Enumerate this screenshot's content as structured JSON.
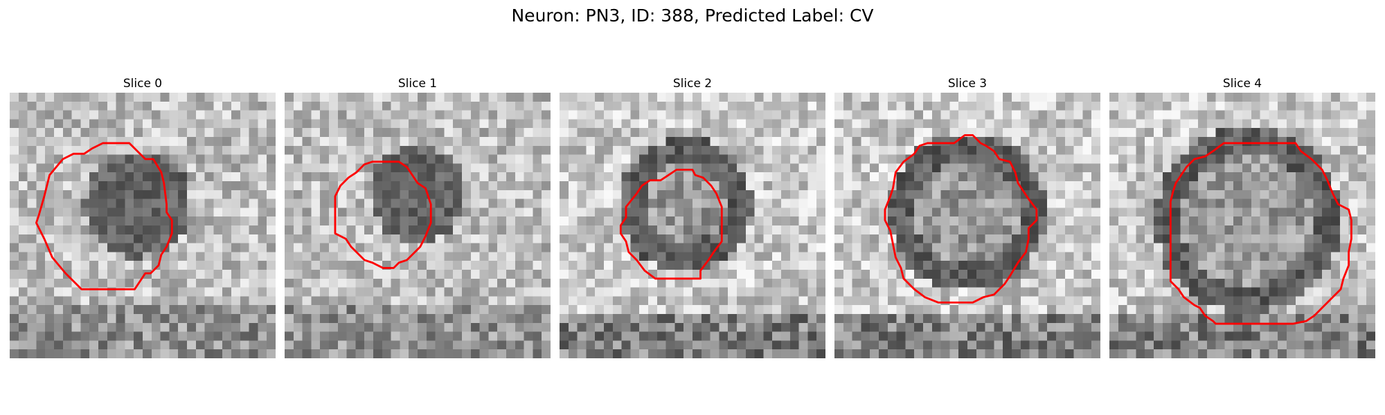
{
  "figure": {
    "title": "Neuron: PN3, ID: 388, Predicted Label: CV",
    "contour_color": "#ff0000"
  },
  "slices": [
    {
      "title": "Slice 0",
      "type": "ring",
      "ring_cx": 0.48,
      "ring_cy": 0.42,
      "ring_r": 0.2,
      "darken": true,
      "contour": [
        [
          0.35,
          0.19
        ],
        [
          0.45,
          0.19
        ],
        [
          0.48,
          0.22
        ],
        [
          0.51,
          0.25
        ],
        [
          0.54,
          0.25
        ],
        [
          0.57,
          0.3
        ],
        [
          0.58,
          0.34
        ],
        [
          0.59,
          0.42
        ],
        [
          0.59,
          0.45
        ],
        [
          0.61,
          0.48
        ],
        [
          0.61,
          0.5
        ],
        [
          0.61,
          0.53
        ],
        [
          0.59,
          0.58
        ],
        [
          0.57,
          0.61
        ],
        [
          0.56,
          0.65
        ],
        [
          0.53,
          0.68
        ],
        [
          0.51,
          0.68
        ],
        [
          0.47,
          0.74
        ],
        [
          0.38,
          0.74
        ],
        [
          0.27,
          0.74
        ],
        [
          0.21,
          0.68
        ],
        [
          0.16,
          0.62
        ],
        [
          0.13,
          0.55
        ],
        [
          0.11,
          0.51
        ],
        [
          0.1,
          0.49
        ],
        [
          0.11,
          0.46
        ],
        [
          0.13,
          0.39
        ],
        [
          0.15,
          0.31
        ],
        [
          0.2,
          0.25
        ],
        [
          0.24,
          0.23
        ],
        [
          0.28,
          0.23
        ],
        [
          0.31,
          0.21
        ]
      ]
    },
    {
      "title": "Slice 1",
      "type": "ring",
      "ring_cx": 0.5,
      "ring_cy": 0.38,
      "ring_r": 0.18,
      "darken": true,
      "contour": [
        [
          0.33,
          0.26
        ],
        [
          0.43,
          0.26
        ],
        [
          0.46,
          0.28
        ],
        [
          0.48,
          0.31
        ],
        [
          0.5,
          0.34
        ],
        [
          0.53,
          0.36
        ],
        [
          0.55,
          0.42
        ],
        [
          0.55,
          0.49
        ],
        [
          0.53,
          0.54
        ],
        [
          0.51,
          0.58
        ],
        [
          0.48,
          0.61
        ],
        [
          0.46,
          0.63
        ],
        [
          0.43,
          0.64
        ],
        [
          0.41,
          0.66
        ],
        [
          0.37,
          0.66
        ],
        [
          0.33,
          0.64
        ],
        [
          0.3,
          0.63
        ],
        [
          0.28,
          0.61
        ],
        [
          0.25,
          0.58
        ],
        [
          0.23,
          0.55
        ],
        [
          0.19,
          0.53
        ],
        [
          0.19,
          0.46
        ],
        [
          0.19,
          0.39
        ],
        [
          0.21,
          0.35
        ],
        [
          0.24,
          0.32
        ],
        [
          0.27,
          0.3
        ],
        [
          0.3,
          0.27
        ]
      ]
    },
    {
      "title": "Slice 2",
      "type": "ring",
      "ring_cx": 0.47,
      "ring_cy": 0.42,
      "ring_r": 0.2,
      "darken": false,
      "contour": [
        [
          0.44,
          0.29
        ],
        [
          0.5,
          0.29
        ],
        [
          0.51,
          0.31
        ],
        [
          0.54,
          0.32
        ],
        [
          0.57,
          0.35
        ],
        [
          0.59,
          0.38
        ],
        [
          0.61,
          0.43
        ],
        [
          0.61,
          0.5
        ],
        [
          0.61,
          0.56
        ],
        [
          0.58,
          0.6
        ],
        [
          0.56,
          0.63
        ],
        [
          0.53,
          0.67
        ],
        [
          0.53,
          0.7
        ],
        [
          0.37,
          0.7
        ],
        [
          0.36,
          0.7
        ],
        [
          0.32,
          0.67
        ],
        [
          0.29,
          0.63
        ],
        [
          0.26,
          0.6
        ],
        [
          0.25,
          0.56
        ],
        [
          0.23,
          0.53
        ],
        [
          0.23,
          0.5
        ],
        [
          0.25,
          0.47
        ],
        [
          0.25,
          0.43
        ],
        [
          0.29,
          0.38
        ],
        [
          0.31,
          0.35
        ],
        [
          0.34,
          0.33
        ],
        [
          0.38,
          0.33
        ],
        [
          0.41,
          0.31
        ]
      ]
    },
    {
      "title": "Slice 3",
      "type": "ring",
      "ring_cx": 0.5,
      "ring_cy": 0.45,
      "ring_r": 0.25,
      "darken": false,
      "contour": [
        [
          0.49,
          0.16
        ],
        [
          0.52,
          0.16
        ],
        [
          0.55,
          0.19
        ],
        [
          0.57,
          0.2
        ],
        [
          0.6,
          0.22
        ],
        [
          0.62,
          0.25
        ],
        [
          0.66,
          0.26
        ],
        [
          0.68,
          0.3
        ],
        [
          0.69,
          0.34
        ],
        [
          0.73,
          0.4
        ],
        [
          0.76,
          0.44
        ],
        [
          0.76,
          0.48
        ],
        [
          0.73,
          0.51
        ],
        [
          0.73,
          0.55
        ],
        [
          0.72,
          0.6
        ],
        [
          0.69,
          0.64
        ],
        [
          0.66,
          0.69
        ],
        [
          0.64,
          0.72
        ],
        [
          0.62,
          0.74
        ],
        [
          0.6,
          0.76
        ],
        [
          0.56,
          0.77
        ],
        [
          0.52,
          0.79
        ],
        [
          0.45,
          0.79
        ],
        [
          0.39,
          0.79
        ],
        [
          0.34,
          0.77
        ],
        [
          0.3,
          0.74
        ],
        [
          0.26,
          0.7
        ],
        [
          0.25,
          0.66
        ],
        [
          0.23,
          0.62
        ],
        [
          0.22,
          0.57
        ],
        [
          0.21,
          0.52
        ],
        [
          0.19,
          0.48
        ],
        [
          0.19,
          0.44
        ],
        [
          0.21,
          0.39
        ],
        [
          0.22,
          0.36
        ],
        [
          0.23,
          0.3
        ],
        [
          0.26,
          0.26
        ],
        [
          0.3,
          0.23
        ],
        [
          0.32,
          0.2
        ],
        [
          0.35,
          0.19
        ],
        [
          0.4,
          0.19
        ],
        [
          0.45,
          0.19
        ]
      ]
    },
    {
      "title": "Slice 4",
      "type": "ring",
      "ring_cx": 0.52,
      "ring_cy": 0.48,
      "ring_r": 0.3,
      "darken": false,
      "contour": [
        [
          0.43,
          0.19
        ],
        [
          0.5,
          0.19
        ],
        [
          0.6,
          0.19
        ],
        [
          0.7,
          0.19
        ],
        [
          0.72,
          0.22
        ],
        [
          0.76,
          0.25
        ],
        [
          0.8,
          0.29
        ],
        [
          0.82,
          0.33
        ],
        [
          0.84,
          0.38
        ],
        [
          0.86,
          0.42
        ],
        [
          0.9,
          0.44
        ],
        [
          0.91,
          0.48
        ],
        [
          0.91,
          0.55
        ],
        [
          0.9,
          0.6
        ],
        [
          0.9,
          0.65
        ],
        [
          0.88,
          0.7
        ],
        [
          0.87,
          0.74
        ],
        [
          0.84,
          0.77
        ],
        [
          0.8,
          0.81
        ],
        [
          0.77,
          0.84
        ],
        [
          0.74,
          0.86
        ],
        [
          0.69,
          0.87
        ],
        [
          0.6,
          0.87
        ],
        [
          0.5,
          0.87
        ],
        [
          0.4,
          0.87
        ],
        [
          0.39,
          0.86
        ],
        [
          0.36,
          0.84
        ],
        [
          0.34,
          0.81
        ],
        [
          0.32,
          0.8
        ],
        [
          0.28,
          0.77
        ],
        [
          0.26,
          0.74
        ],
        [
          0.23,
          0.71
        ],
        [
          0.23,
          0.6
        ],
        [
          0.23,
          0.51
        ],
        [
          0.23,
          0.41
        ],
        [
          0.24,
          0.37
        ],
        [
          0.25,
          0.34
        ],
        [
          0.27,
          0.31
        ],
        [
          0.29,
          0.28
        ],
        [
          0.32,
          0.25
        ],
        [
          0.36,
          0.24
        ],
        [
          0.39,
          0.22
        ]
      ]
    }
  ]
}
